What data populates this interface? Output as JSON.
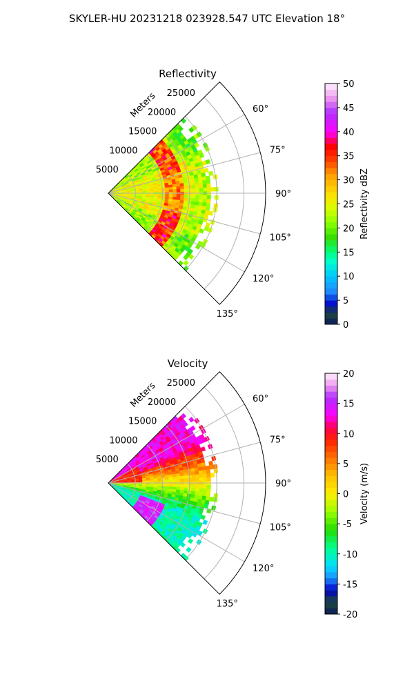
{
  "figure_title": "SKYLER-HU  20231218  023928.547 UTC Elevation 18°",
  "chart_data": [
    {
      "type": "heatmap",
      "subtype": "polar-sector (radar PPI)",
      "title": "Reflectivity",
      "radial_label": "Meters",
      "theta_range_deg": [
        45,
        135
      ],
      "theta_ticks": [
        "60°",
        "75°",
        "90°",
        "105°",
        "120°",
        "135°"
      ],
      "r_range": [
        0,
        29000
      ],
      "r_ticks": [
        5000,
        10000,
        15000,
        20000,
        25000
      ],
      "grid": true,
      "colorbar": {
        "label": "Reflectivity dBZ",
        "min": 0,
        "max": 50,
        "ticks": [
          0,
          5,
          10,
          15,
          20,
          25,
          30,
          35,
          40,
          45,
          50
        ],
        "stops": [
          {
            "v": 0,
            "c": "#0b1a5c"
          },
          {
            "v": 2.5,
            "c": "#1e4a3a"
          },
          {
            "v": 4,
            "c": "#0000c8"
          },
          {
            "v": 7,
            "c": "#1e90ff"
          },
          {
            "v": 10,
            "c": "#00c8ff"
          },
          {
            "v": 13,
            "c": "#00ffd0"
          },
          {
            "v": 15,
            "c": "#00ff7f"
          },
          {
            "v": 18,
            "c": "#33dd00"
          },
          {
            "v": 21,
            "c": "#88ff00"
          },
          {
            "v": 24,
            "c": "#d8ff00"
          },
          {
            "v": 27,
            "c": "#ffe000"
          },
          {
            "v": 31,
            "c": "#ffa000"
          },
          {
            "v": 34,
            "c": "#ff4000"
          },
          {
            "v": 37,
            "c": "#ff0000"
          },
          {
            "v": 40,
            "c": "#ff00ff"
          },
          {
            "v": 44,
            "c": "#b030ff"
          },
          {
            "v": 47,
            "c": "#ee99ee"
          },
          {
            "v": 50,
            "c": "#fff0ff"
          }
        ]
      },
      "echo_extent_m": [
        0,
        20000
      ],
      "echo_theta_deg": [
        45,
        135
      ],
      "pattern": "weak-to-moderate echoes (about 15–30 dBZ) throughout the sector out to about 20000 m; a stronger band of 30–38 dBZ near 11000–14000 m, most intense near the 60° and 105° bearings"
    },
    {
      "type": "heatmap",
      "subtype": "polar-sector (radar PPI)",
      "title": "Velocity",
      "radial_label": "Meters",
      "theta_range_deg": [
        45,
        135
      ],
      "theta_ticks": [
        "60°",
        "75°",
        "90°",
        "105°",
        "120°",
        "135°"
      ],
      "r_range": [
        0,
        29000
      ],
      "r_ticks": [
        5000,
        10000,
        15000,
        20000,
        25000
      ],
      "grid": true,
      "colorbar": {
        "label": "Velocity (m/s)",
        "min": -20,
        "max": 20,
        "ticks": [
          -20,
          -15,
          -10,
          -5,
          0,
          5,
          10,
          15,
          20
        ],
        "stops": [
          {
            "v": -20,
            "c": "#0b1a5c"
          },
          {
            "v": -18,
            "c": "#1e4a3a"
          },
          {
            "v": -16,
            "c": "#0000c8"
          },
          {
            "v": -14,
            "c": "#1e90ff"
          },
          {
            "v": -12,
            "c": "#00e0ff"
          },
          {
            "v": -9,
            "c": "#00ff90"
          },
          {
            "v": -6,
            "c": "#22dd00"
          },
          {
            "v": -3,
            "c": "#99ff00"
          },
          {
            "v": 0,
            "c": "#ffee00"
          },
          {
            "v": 3,
            "c": "#ffc000"
          },
          {
            "v": 6,
            "c": "#ff7000"
          },
          {
            "v": 9,
            "c": "#ff2000"
          },
          {
            "v": 11,
            "c": "#ff0050"
          },
          {
            "v": 13,
            "c": "#ff00ff"
          },
          {
            "v": 16,
            "c": "#b030ff"
          },
          {
            "v": 18,
            "c": "#ee99ee"
          },
          {
            "v": 20,
            "c": "#fff0ff"
          }
        ]
      },
      "echo_extent_m": [
        0,
        20000
      ],
      "echo_theta_deg": [
        45,
        135
      ],
      "pattern": "positive (outbound) velocities of about 10–15 m/s at bearings 55°–75°, transitioning through 0 m/s near 90° to negative (inbound) velocities of about -8 to -12 m/s at bearings 100°–120°"
    }
  ]
}
